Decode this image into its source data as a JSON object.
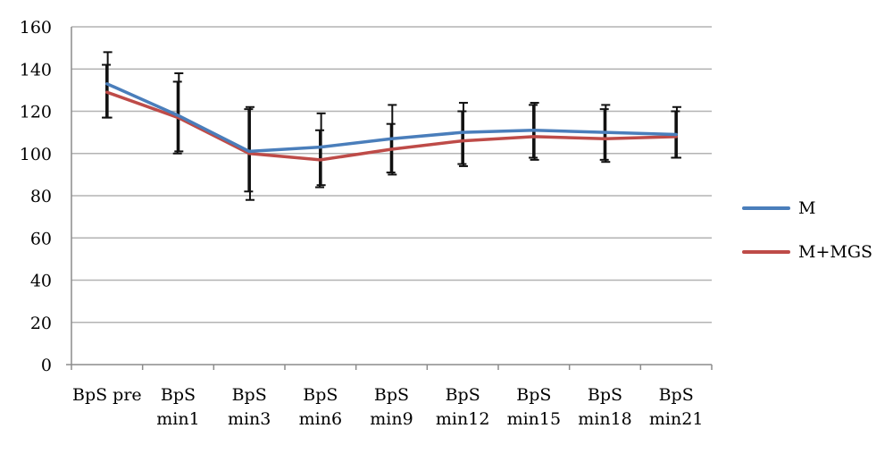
{
  "chart_data": {
    "type": "line",
    "title": "",
    "xlabel": "",
    "ylabel": "",
    "ylim": [
      0,
      160
    ],
    "yticks": [
      0,
      20,
      40,
      60,
      80,
      100,
      120,
      140,
      160
    ],
    "grid": true,
    "legend_position": "right",
    "categories": [
      [
        "BpS pre"
      ],
      [
        "BpS",
        "min1"
      ],
      [
        "BpS",
        "min3"
      ],
      [
        "BpS",
        "min6"
      ],
      [
        "BpS",
        "min9"
      ],
      [
        "BpS",
        "min12"
      ],
      [
        "BpS",
        "min15"
      ],
      [
        "BpS",
        "min18"
      ],
      [
        "BpS",
        "min21"
      ]
    ],
    "series": [
      {
        "name": "M",
        "color": "#4a7ebb",
        "values": [
          133,
          118,
          101,
          103,
          107,
          110,
          111,
          110,
          109
        ],
        "err_low": [
          117,
          101,
          78,
          85,
          90,
          94,
          97,
          96,
          98
        ],
        "err_high": [
          148,
          138,
          122,
          119,
          123,
          124,
          124,
          123,
          122
        ]
      },
      {
        "name": "M+MGS",
        "color": "#be4b48",
        "values": [
          129,
          117,
          100,
          97,
          102,
          106,
          108,
          107,
          108
        ],
        "err_low": [
          117,
          100,
          82,
          84,
          91,
          95,
          98,
          97,
          98
        ],
        "err_high": [
          142,
          134,
          121,
          111,
          114,
          120,
          123,
          121,
          120
        ]
      }
    ]
  }
}
